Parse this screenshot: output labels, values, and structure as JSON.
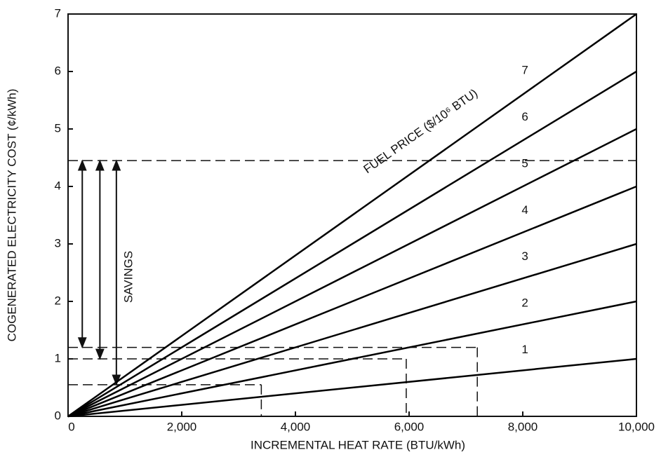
{
  "chart_data": {
    "type": "line",
    "xlabel": "INCREMENTAL HEAT RATE (BTU/kWh)",
    "ylabel": "COGENERATED ELECTRICITY COST (¢/kWh)",
    "legend_title": "FUEL PRICE ($/10⁶ BTU)",
    "annotation": "SAVINGS",
    "x": [
      0,
      10000
    ],
    "series": [
      {
        "name": "1",
        "color": "#000000",
        "values": [
          0,
          1
        ]
      },
      {
        "name": "2",
        "color": "#000000",
        "values": [
          0,
          2
        ]
      },
      {
        "name": "3",
        "color": "#000000",
        "values": [
          0,
          3
        ]
      },
      {
        "name": "4",
        "color": "#000000",
        "values": [
          0,
          4
        ]
      },
      {
        "name": "5",
        "color": "#000000",
        "values": [
          0,
          5
        ]
      },
      {
        "name": "6",
        "color": "#000000",
        "values": [
          0,
          6
        ]
      },
      {
        "name": "7",
        "color": "#000000",
        "values": [
          0,
          7
        ]
      }
    ],
    "dashed_lines": [
      {
        "y": 4.45,
        "x": 10000
      },
      {
        "y": 1.2,
        "x": 7200
      },
      {
        "y": 1.0,
        "x": 5950
      },
      {
        "y": 0.55,
        "x": 3400
      }
    ],
    "savings_arrows": [
      {
        "x": 250,
        "from": 4.45,
        "to": 1.2
      },
      {
        "x": 560,
        "from": 4.45,
        "to": 1.0
      },
      {
        "x": 850,
        "from": 4.45,
        "to": 0.55
      }
    ],
    "xlim": [
      0,
      10000
    ],
    "ylim": [
      0,
      7
    ],
    "xticks": [
      0,
      {
        "value": 2000,
        "label": "2,000"
      },
      {
        "value": 4000,
        "label": "4,000"
      },
      {
        "value": 6000,
        "label": "6,000"
      },
      {
        "value": 8000,
        "label": "8,000"
      },
      {
        "value": 10000,
        "label": "10,000"
      }
    ],
    "yticks": [
      0,
      1,
      2,
      3,
      4,
      5,
      6,
      7
    ]
  }
}
